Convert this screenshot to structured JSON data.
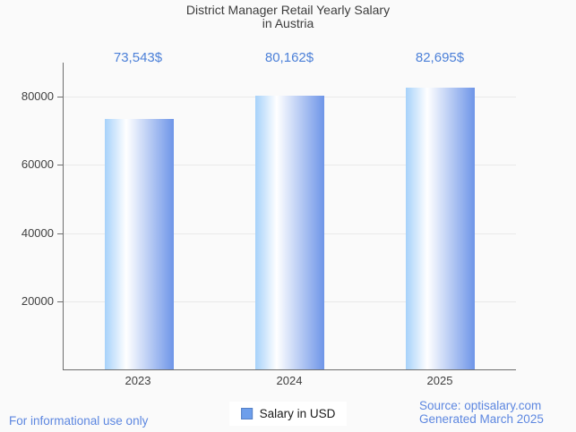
{
  "chart_data": {
    "type": "bar",
    "title": "District Manager Retail Yearly Salary in Austria",
    "title_lines": [
      "District Manager Retail Yearly Salary",
      "in Austria"
    ],
    "categories": [
      "2023",
      "2024",
      "2025"
    ],
    "series": [
      {
        "name": "Salary in USD",
        "values": [
          73543,
          80162,
          82695
        ]
      }
    ],
    "value_labels": [
      "73,543$",
      "80,162$",
      "82,695$"
    ],
    "xlabel": "",
    "ylabel": "",
    "ylim": [
      0,
      90000
    ],
    "yticks": [
      20000,
      40000,
      60000,
      80000
    ],
    "ytick_labels": [
      "20000",
      "40000",
      "60000",
      "80000"
    ],
    "grid": true,
    "legend_position": "bottom"
  },
  "legend": {
    "label": "Salary in USD"
  },
  "footer": {
    "disclaimer": "For informational use only",
    "source": "Source: optisalary.com",
    "generated": "Generated March 2025"
  },
  "colors": {
    "background": "#fafafa",
    "title_text": "#3c3c3c",
    "axis_text": "#3f3f3f",
    "value_label_text": "#4c80d8",
    "footer_text": "#5d87e0",
    "axis_line": "#6e6e6e",
    "gridline": "#e9e9e9",
    "bar_gradient_left": "#a6d1fa",
    "bar_gradient_mid": "#ffffff",
    "bar_gradient_right": "#6e95e8",
    "legend_swatch_fill": "#6d9eeb",
    "legend_swatch_border": "#5680c5"
  }
}
